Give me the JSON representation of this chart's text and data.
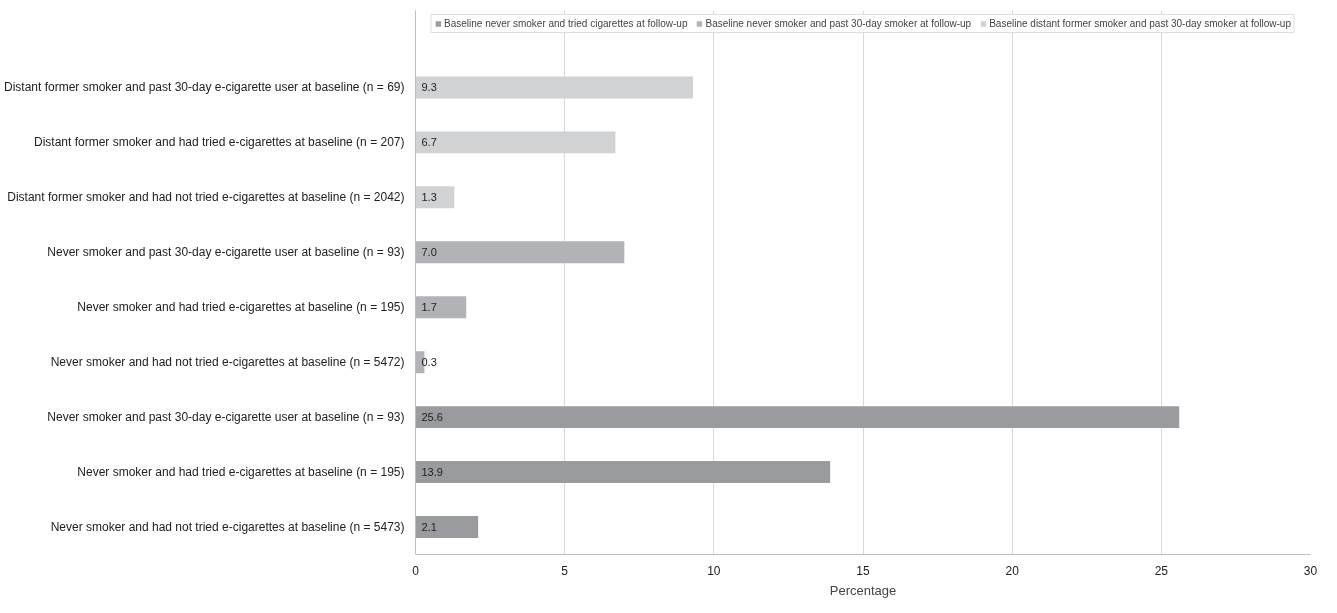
{
  "chart_data": {
    "type": "bar",
    "orientation": "horizontal",
    "xlabel": "Percentage",
    "categories": [
      "Distant former smoker and past 30-day e-cigarette user at baseline (n = 69)",
      "Distant former smoker and had tried e-cigarettes at baseline (n = 207)",
      "Distant former smoker and had not tried e-cigarettes at baseline (n = 2042)",
      "Never smoker and past 30-day e-cigarette user at baseline (n = 93)",
      "Never smoker and had tried e-cigarettes at baseline (n = 195)",
      "Never smoker and had not tried e-cigarettes at baseline (n = 5472)",
      "Never smoker and past 30-day e-cigarette user at baseline (n = 93)",
      "Never smoker and had tried e-cigarettes at baseline (n = 195)",
      "Never smoker and had not tried e-cigarettes at baseline (n = 5473)"
    ],
    "series": [
      {
        "name": "Baseline never smoker and tried cigarettes at follow-up",
        "color": "#9a9b9e",
        "values": [
          null,
          null,
          null,
          null,
          null,
          null,
          25.6,
          13.9,
          2.1
        ],
        "value_labels": [
          null,
          null,
          null,
          null,
          null,
          null,
          "25.6",
          "13.9",
          "2.1"
        ]
      },
      {
        "name": "Baseline never smoker and past 30-day smoker at follow-up",
        "color": "#b2b3b6",
        "values": [
          null,
          null,
          null,
          7.0,
          1.7,
          0.3,
          null,
          null,
          null
        ],
        "value_labels": [
          null,
          null,
          null,
          "7.0",
          "1.7",
          "0.3",
          null,
          null,
          null
        ]
      },
      {
        "name": "Baseline distant former smoker and past 30-day smoker at follow-up",
        "color": "#d1d2d4",
        "values": [
          9.3,
          6.7,
          1.3,
          null,
          null,
          null,
          null,
          null,
          null
        ],
        "value_labels": [
          "9.3",
          "6.7",
          "1.3",
          null,
          null,
          null,
          null,
          null,
          null
        ]
      }
    ],
    "xlim": [
      0,
      30
    ],
    "xticks": [
      0,
      5,
      10,
      15,
      20,
      25,
      30
    ],
    "grid": "x",
    "legend": "top",
    "data_labels": true
  }
}
